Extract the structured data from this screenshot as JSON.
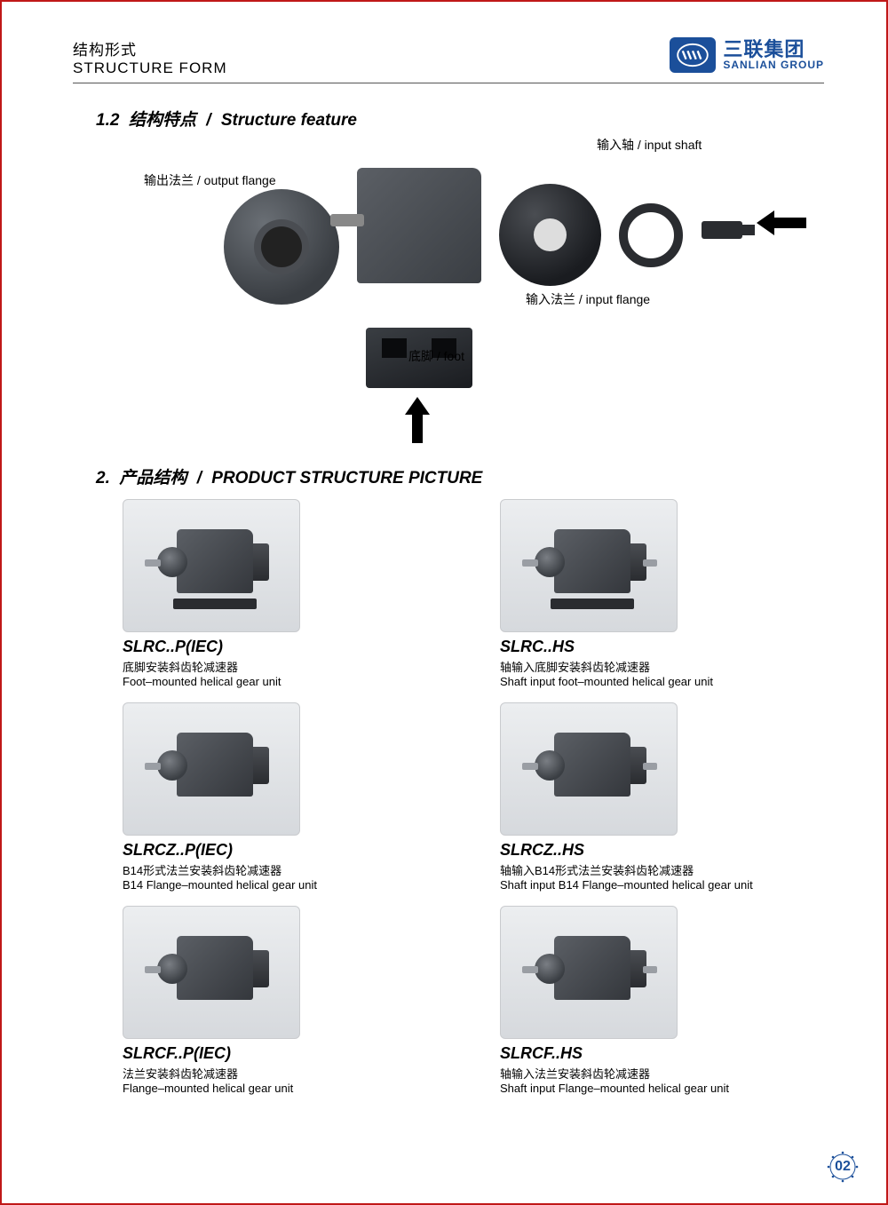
{
  "header": {
    "title_cn": "结构形式",
    "title_en": "STRUCTURE FORM",
    "company_cn": "三联集团",
    "company_en": "SANLIAN GROUP"
  },
  "section1": {
    "number": "1.2",
    "title_cn": "结构特点",
    "title_en": "Structure feature"
  },
  "diagram_labels": {
    "output_flange": "输出法兰 / output flange",
    "input_shaft": "输入轴 / input shaft",
    "input_flange": "输入法兰 / input flange",
    "foot": "底脚 / foot"
  },
  "section2": {
    "number": "2.",
    "title_cn": "产品结构",
    "title_en": "PRODUCT STRUCTURE PICTURE"
  },
  "products": [
    {
      "code": "SLRC..P(IEC)",
      "cn": "底脚安装斜齿轮减速器",
      "en": "Foot–mounted helical gear unit",
      "has_foot": true,
      "has_rshaft": false
    },
    {
      "code": "SLRC..HS",
      "cn": "轴输入底脚安装斜齿轮减速器",
      "en": "Shaft input foot–mounted helical gear unit",
      "has_foot": true,
      "has_rshaft": true
    },
    {
      "code": "SLRCZ..P(IEC)",
      "cn": "B14形式法兰安装斜齿轮减速器",
      "en": "B14 Flange–mounted helical gear unit",
      "has_foot": false,
      "has_rshaft": false
    },
    {
      "code": "SLRCZ..HS",
      "cn": "轴输入B14形式法兰安装斜齿轮减速器",
      "en": "Shaft input B14 Flange–mounted helical gear unit",
      "has_foot": false,
      "has_rshaft": true
    },
    {
      "code": "SLRCF..P(IEC)",
      "cn": "法兰安装斜齿轮减速器",
      "en": "Flange–mounted helical gear unit",
      "has_foot": false,
      "has_rshaft": false
    },
    {
      "code": "SLRCF..HS",
      "cn": "轴输入法兰安装斜齿轮减速器",
      "en": "Shaft input Flange–mounted helical gear unit",
      "has_foot": false,
      "has_rshaft": true
    }
  ],
  "page_number": "02",
  "colors": {
    "border": "#c01818",
    "brand": "#1b4f9a",
    "text": "#000000",
    "metal_light": "#6a6f75",
    "metal_dark": "#3a3e43"
  }
}
